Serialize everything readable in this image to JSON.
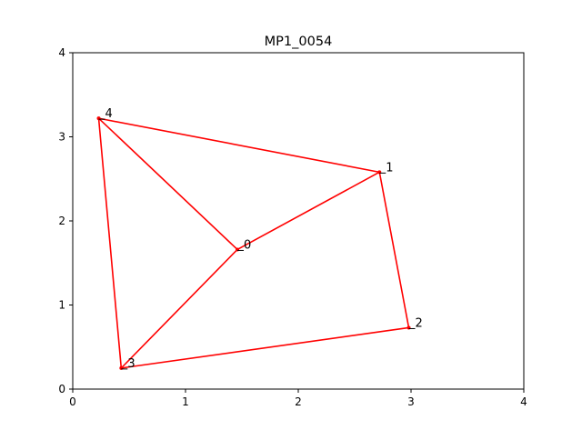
{
  "chart_data": {
    "type": "network",
    "title": "MP1_0054",
    "xlabel": "",
    "ylabel": "",
    "xlim": [
      0,
      4
    ],
    "ylim": [
      0,
      4
    ],
    "x_ticks": [
      0,
      1,
      2,
      3,
      4
    ],
    "y_ticks": [
      0,
      1,
      2,
      3,
      4
    ],
    "grid": false,
    "line_color": "#ff0000",
    "nodes": [
      {
        "label": "0",
        "x": 1.46,
        "y": 1.66
      },
      {
        "label": "1",
        "x": 2.72,
        "y": 2.58
      },
      {
        "label": "2",
        "x": 2.98,
        "y": 0.73
      },
      {
        "label": "3",
        "x": 0.43,
        "y": 0.25
      },
      {
        "label": "4",
        "x": 0.23,
        "y": 3.22
      }
    ],
    "edges": [
      [
        4,
        1
      ],
      [
        1,
        2
      ],
      [
        2,
        3
      ],
      [
        3,
        4
      ],
      [
        0,
        1
      ],
      [
        0,
        3
      ],
      [
        0,
        4
      ]
    ]
  }
}
